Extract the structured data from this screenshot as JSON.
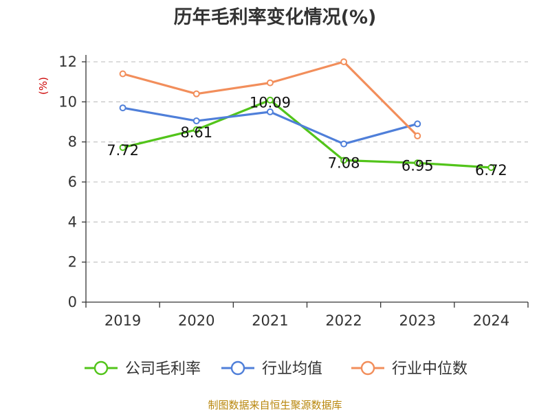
{
  "title": "历年毛利率变化情况(%)",
  "unit_label": "(%)",
  "source": "制图数据来自恒生聚源数据库",
  "chart_data": {
    "type": "line",
    "title": "历年毛利率变化情况(%)",
    "ylabel": "(%)",
    "ylim": [
      0,
      12
    ],
    "yticks": [
      0,
      2,
      4,
      6,
      8,
      10,
      12
    ],
    "grid": true,
    "legend_position": "bottom",
    "categories": [
      "2019",
      "2020",
      "2021",
      "2022",
      "2023",
      "2024"
    ],
    "series": [
      {
        "name": "公司毛利率",
        "color": "#52c41a",
        "show_labels": true,
        "values": [
          7.72,
          8.61,
          10.09,
          7.08,
          6.95,
          6.72
        ]
      },
      {
        "name": "行业均值",
        "color": "#4f7fd9",
        "show_labels": false,
        "values": [
          9.7,
          9.05,
          9.5,
          7.9,
          8.9,
          null
        ]
      },
      {
        "name": "行业中位数",
        "color": "#f28e5b",
        "show_labels": false,
        "values": [
          11.4,
          10.4,
          10.95,
          12.0,
          8.3,
          null
        ]
      }
    ]
  }
}
